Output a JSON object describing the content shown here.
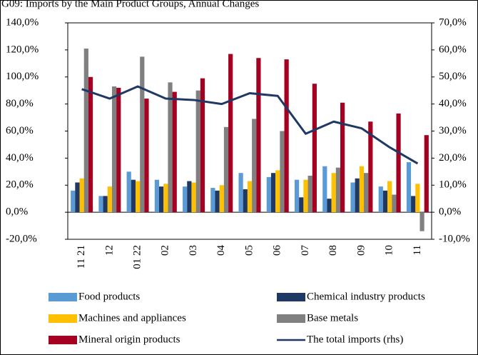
{
  "chart_data": {
    "type": "bar_line",
    "title": "G09: Imports by the Main Product Groups, Annual Changes",
    "categories": [
      "11 21",
      "12",
      "01 22",
      "02",
      "03",
      "04",
      "05",
      "06",
      "07",
      "08",
      "09",
      "10",
      "11"
    ],
    "series": [
      {
        "name": "Food products",
        "color": "#5b9bd5",
        "type": "bar",
        "values": [
          16,
          12,
          30,
          24,
          19,
          18,
          29,
          26,
          24,
          34,
          22,
          19,
          37
        ]
      },
      {
        "name": "Chemical industry products",
        "color": "#1f3864",
        "type": "bar",
        "values": [
          22,
          12,
          24,
          19,
          23,
          16,
          17,
          29,
          11,
          10,
          25,
          16,
          12
        ]
      },
      {
        "name": "Machines and appliances",
        "color": "#ffc000",
        "type": "bar",
        "values": [
          25,
          19,
          23,
          21,
          22,
          20,
          23,
          31,
          24,
          29,
          34,
          23,
          21
        ]
      },
      {
        "name": "Base metals",
        "color": "#808080",
        "type": "bar",
        "values": [
          121,
          93,
          115,
          96,
          90,
          63,
          69,
          60,
          27,
          33,
          29,
          13,
          -14
        ]
      },
      {
        "name": "Mineral origin products",
        "color": "#a50021",
        "type": "bar",
        "values": [
          100,
          92,
          84,
          89,
          99,
          117,
          114,
          113,
          95,
          81,
          67,
          73,
          57
        ]
      },
      {
        "name": "The total imports (rhs)",
        "color": "#1f3864",
        "type": "line",
        "axis": "y2",
        "values": [
          45.5,
          42,
          46.5,
          42,
          41.5,
          40,
          44,
          43,
          29,
          33.5,
          31,
          24,
          18
        ]
      }
    ],
    "ylim": [
      -20,
      140
    ],
    "yticks": [
      {
        "value": -20,
        "label": "-20,0%"
      },
      {
        "value": 0,
        "label": "0,0%"
      },
      {
        "value": 20,
        "label": "20,0%"
      },
      {
        "value": 40,
        "label": "40,0%"
      },
      {
        "value": 60,
        "label": "60,0%"
      },
      {
        "value": 80,
        "label": "80,0%"
      },
      {
        "value": 100,
        "label": "100,0%"
      },
      {
        "value": 120,
        "label": "120,0%"
      },
      {
        "value": 140,
        "label": "140,0%"
      }
    ],
    "y2lim": [
      -10,
      70
    ],
    "y2ticks": [
      {
        "value": -10,
        "label": "-10,0%"
      },
      {
        "value": 0,
        "label": "0,0%"
      },
      {
        "value": 10,
        "label": "10,0%"
      },
      {
        "value": 20,
        "label": "20,0%"
      },
      {
        "value": 30,
        "label": "30,0%"
      },
      {
        "value": 40,
        "label": "40,0%"
      },
      {
        "value": 50,
        "label": "50,0%"
      },
      {
        "value": 60,
        "label": "60,0%"
      },
      {
        "value": 70,
        "label": "70,0%"
      }
    ]
  }
}
